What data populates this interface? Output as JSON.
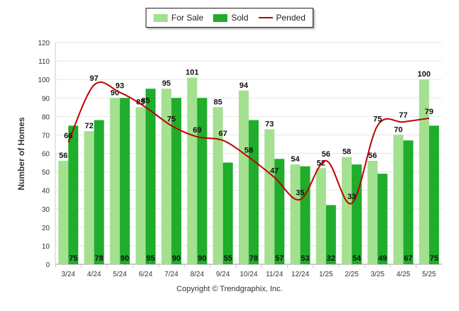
{
  "legend": {
    "for_sale": "For Sale",
    "sold": "Sold",
    "pended": "Pended"
  },
  "colors": {
    "for_sale": "#a3e08f",
    "sold": "#1fad2b",
    "pended": "#c00000"
  },
  "copyright": "Copyright © Trendgraphix, Inc.",
  "chart_data": {
    "type": "bar",
    "title": "",
    "xlabel": "",
    "ylabel": "Number of Homes",
    "ylim": [
      0,
      120
    ],
    "yticks": [
      0,
      10,
      20,
      30,
      40,
      50,
      60,
      70,
      80,
      90,
      100,
      110,
      120
    ],
    "grid": true,
    "legend_position": "top-center",
    "categories": [
      "3/24",
      "4/24",
      "5/24",
      "6/24",
      "7/24",
      "8/24",
      "9/24",
      "10/24",
      "11/24",
      "12/24",
      "1/25",
      "2/25",
      "3/25",
      "4/25",
      "5/25"
    ],
    "series": [
      {
        "name": "For Sale",
        "type": "bar",
        "values": [
          56,
          72,
          90,
          85,
          95,
          101,
          85,
          94,
          73,
          54,
          52,
          58,
          56,
          70,
          100
        ]
      },
      {
        "name": "Sold",
        "type": "bar",
        "values": [
          75,
          78,
          90,
          95,
          90,
          90,
          55,
          78,
          57,
          53,
          32,
          54,
          49,
          67,
          75
        ]
      },
      {
        "name": "Pended",
        "type": "line",
        "values": [
          66,
          97,
          93,
          85,
          75,
          69,
          67,
          58,
          47,
          35,
          56,
          33,
          75,
          77,
          79
        ]
      }
    ]
  }
}
